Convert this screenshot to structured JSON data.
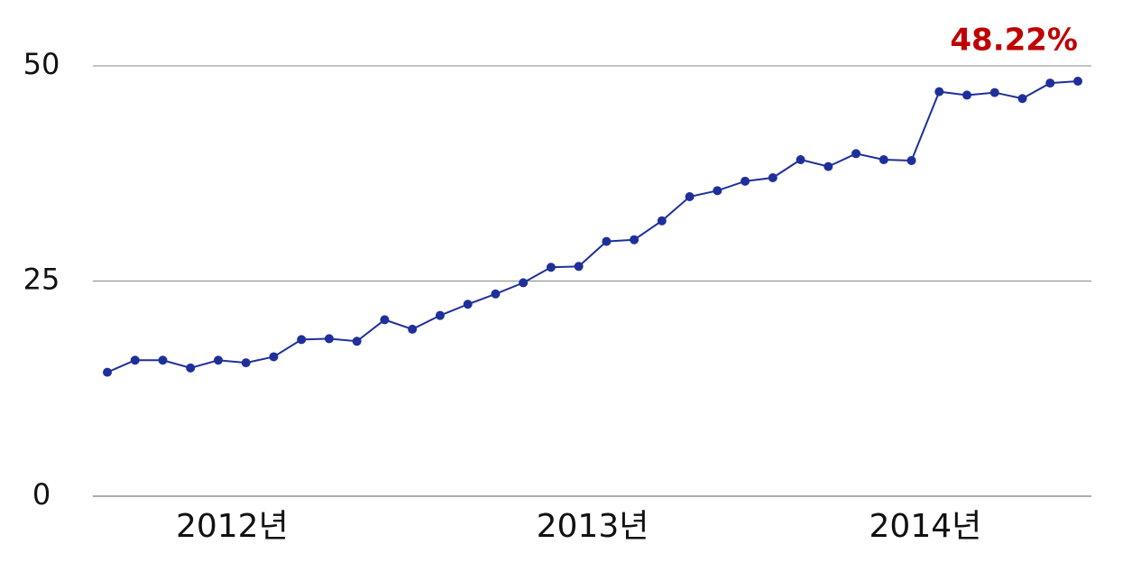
{
  "chart_data": {
    "type": "line",
    "categories": [
      null,
      null,
      null,
      null,
      null,
      "2012년",
      null,
      null,
      null,
      null,
      null,
      null,
      null,
      null,
      null,
      null,
      null,
      null,
      "2013년",
      null,
      null,
      null,
      null,
      null,
      null,
      null,
      null,
      null,
      null,
      null,
      "2014년",
      null,
      null,
      null,
      null,
      null
    ],
    "series": [
      {
        "color": "#1f2f9a",
        "values": [
          14.4,
          15.8,
          15.8,
          14.9,
          15.8,
          15.5,
          16.2,
          18.2,
          18.3,
          18.0,
          20.5,
          19.4,
          21.0,
          22.3,
          23.5,
          24.8,
          26.6,
          26.7,
          29.6,
          29.8,
          32.0,
          34.8,
          35.5,
          36.6,
          37.0,
          39.1,
          38.3,
          39.8,
          39.1,
          39.0,
          47.0,
          46.6,
          46.9,
          46.2,
          48.0,
          48.22
        ],
        "value_labels": [
          null,
          null,
          null,
          null,
          null,
          null,
          null,
          null,
          null,
          null,
          null,
          null,
          null,
          null,
          null,
          null,
          null,
          null,
          null,
          null,
          null,
          null,
          null,
          null,
          null,
          null,
          null,
          null,
          null,
          null,
          null,
          null,
          null,
          null,
          null,
          "48.22%"
        ]
      }
    ],
    "ylim": [
      0,
      50
    ],
    "yticks": [
      0,
      25,
      50
    ],
    "grid": true
  }
}
